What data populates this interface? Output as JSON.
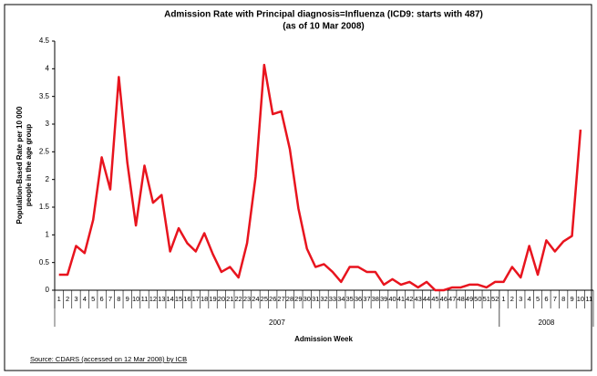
{
  "chart_data": {
    "type": "line",
    "title": "Admission Rate with Principal diagnosis=Influenza (ICD9: starts with 487)",
    "subtitle": "(as of 10 Mar 2008)",
    "y_label": [
      "Population-Based Rate per 10 000",
      "people in the age group"
    ],
    "x_label": "Admission Week",
    "source": "Source: CDARS (accessed on 12 Mar 2008) by ICB",
    "categories": [
      "1",
      "2",
      "3",
      "4",
      "5",
      "6",
      "7",
      "8",
      "9",
      "10",
      "11",
      "12",
      "13",
      "14",
      "15",
      "16",
      "17",
      "18",
      "19",
      "20",
      "21",
      "22",
      "23",
      "24",
      "25",
      "26",
      "27",
      "28",
      "29",
      "30",
      "31",
      "32",
      "33",
      "34",
      "35",
      "36",
      "37",
      "38",
      "39",
      "40",
      "41",
      "42",
      "43",
      "44",
      "45",
      "46",
      "47",
      "48",
      "49",
      "50",
      "51",
      "52",
      "1",
      "2",
      "3",
      "4",
      "5",
      "6",
      "7",
      "8",
      "9",
      "10",
      "11"
    ],
    "category_groups": [
      {
        "name": "2007",
        "size": 52
      },
      {
        "name": "2008",
        "size": 11
      }
    ],
    "series": [
      {
        "name": "Admission Rate",
        "color": "#e8141e",
        "values": [
          0.28,
          0.28,
          0.8,
          0.67,
          1.27,
          2.4,
          1.82,
          3.85,
          2.3,
          1.17,
          2.25,
          1.58,
          1.72,
          0.7,
          1.12,
          0.85,
          0.7,
          1.03,
          0.65,
          0.33,
          0.42,
          0.23,
          0.85,
          2.05,
          4.07,
          3.18,
          3.23,
          2.55,
          1.48,
          0.75,
          0.42,
          0.47,
          0.33,
          0.15,
          0.42,
          0.42,
          0.33,
          0.33,
          0.1,
          0.2,
          0.1,
          0.15,
          0.05,
          0.15,
          0,
          0,
          0.05,
          0.05,
          0.1,
          0.1,
          0.05,
          0.15,
          0.15,
          0.42,
          0.23,
          0.8,
          0.28,
          0.9,
          0.7,
          0.88,
          0.98,
          2.9,
          null
        ]
      }
    ],
    "ylim": [
      0,
      4.5
    ],
    "yticks": [
      0,
      0.5,
      1,
      1.5,
      2,
      2.5,
      3,
      3.5,
      4,
      4.5
    ],
    "grid": false
  }
}
